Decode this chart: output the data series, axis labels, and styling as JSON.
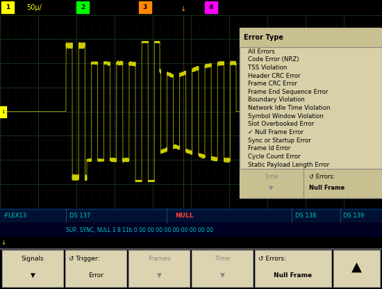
{
  "bg_color": "#000000",
  "top_bar_bg": "#c8c09a",
  "osc_bg": "#000000",
  "grid_color": "#1a3a1a",
  "wave_color": "#cccc00",
  "menu_bg": "#d8d0a8",
  "menu_border": "#999999",
  "menu_title": "Error Type",
  "menu_items": [
    "All Errors",
    "Code Error (NRZ)",
    "TSS Violation",
    "Header CRC Error",
    "Frame CRC Error",
    "Frame End Sequence Error",
    "Boundary Violation",
    "Network Idle Time Violation",
    "Symbol Window Violation",
    "Slot Overbooked Error",
    "✓ Null Frame Error",
    "Sync or Startup Error",
    "Frame Id Error",
    "Cycle Count Error",
    "Static Payload Length Error"
  ],
  "data_bar_bg": "#000033",
  "data_bar_top_bg": "#001144",
  "flexray_bar_bg": "#c8c09a",
  "toolbar_bg": "#c8c09a",
  "channel_1_color": "#ffff00",
  "channel_2_color": "#00ff00",
  "channel_3_color": "#ff8800",
  "channel_4_color": "#ff00ff",
  "trigger_color": "#ffaa00",
  "null_color": "#ff4444",
  "cyan_text": "#00cccc"
}
